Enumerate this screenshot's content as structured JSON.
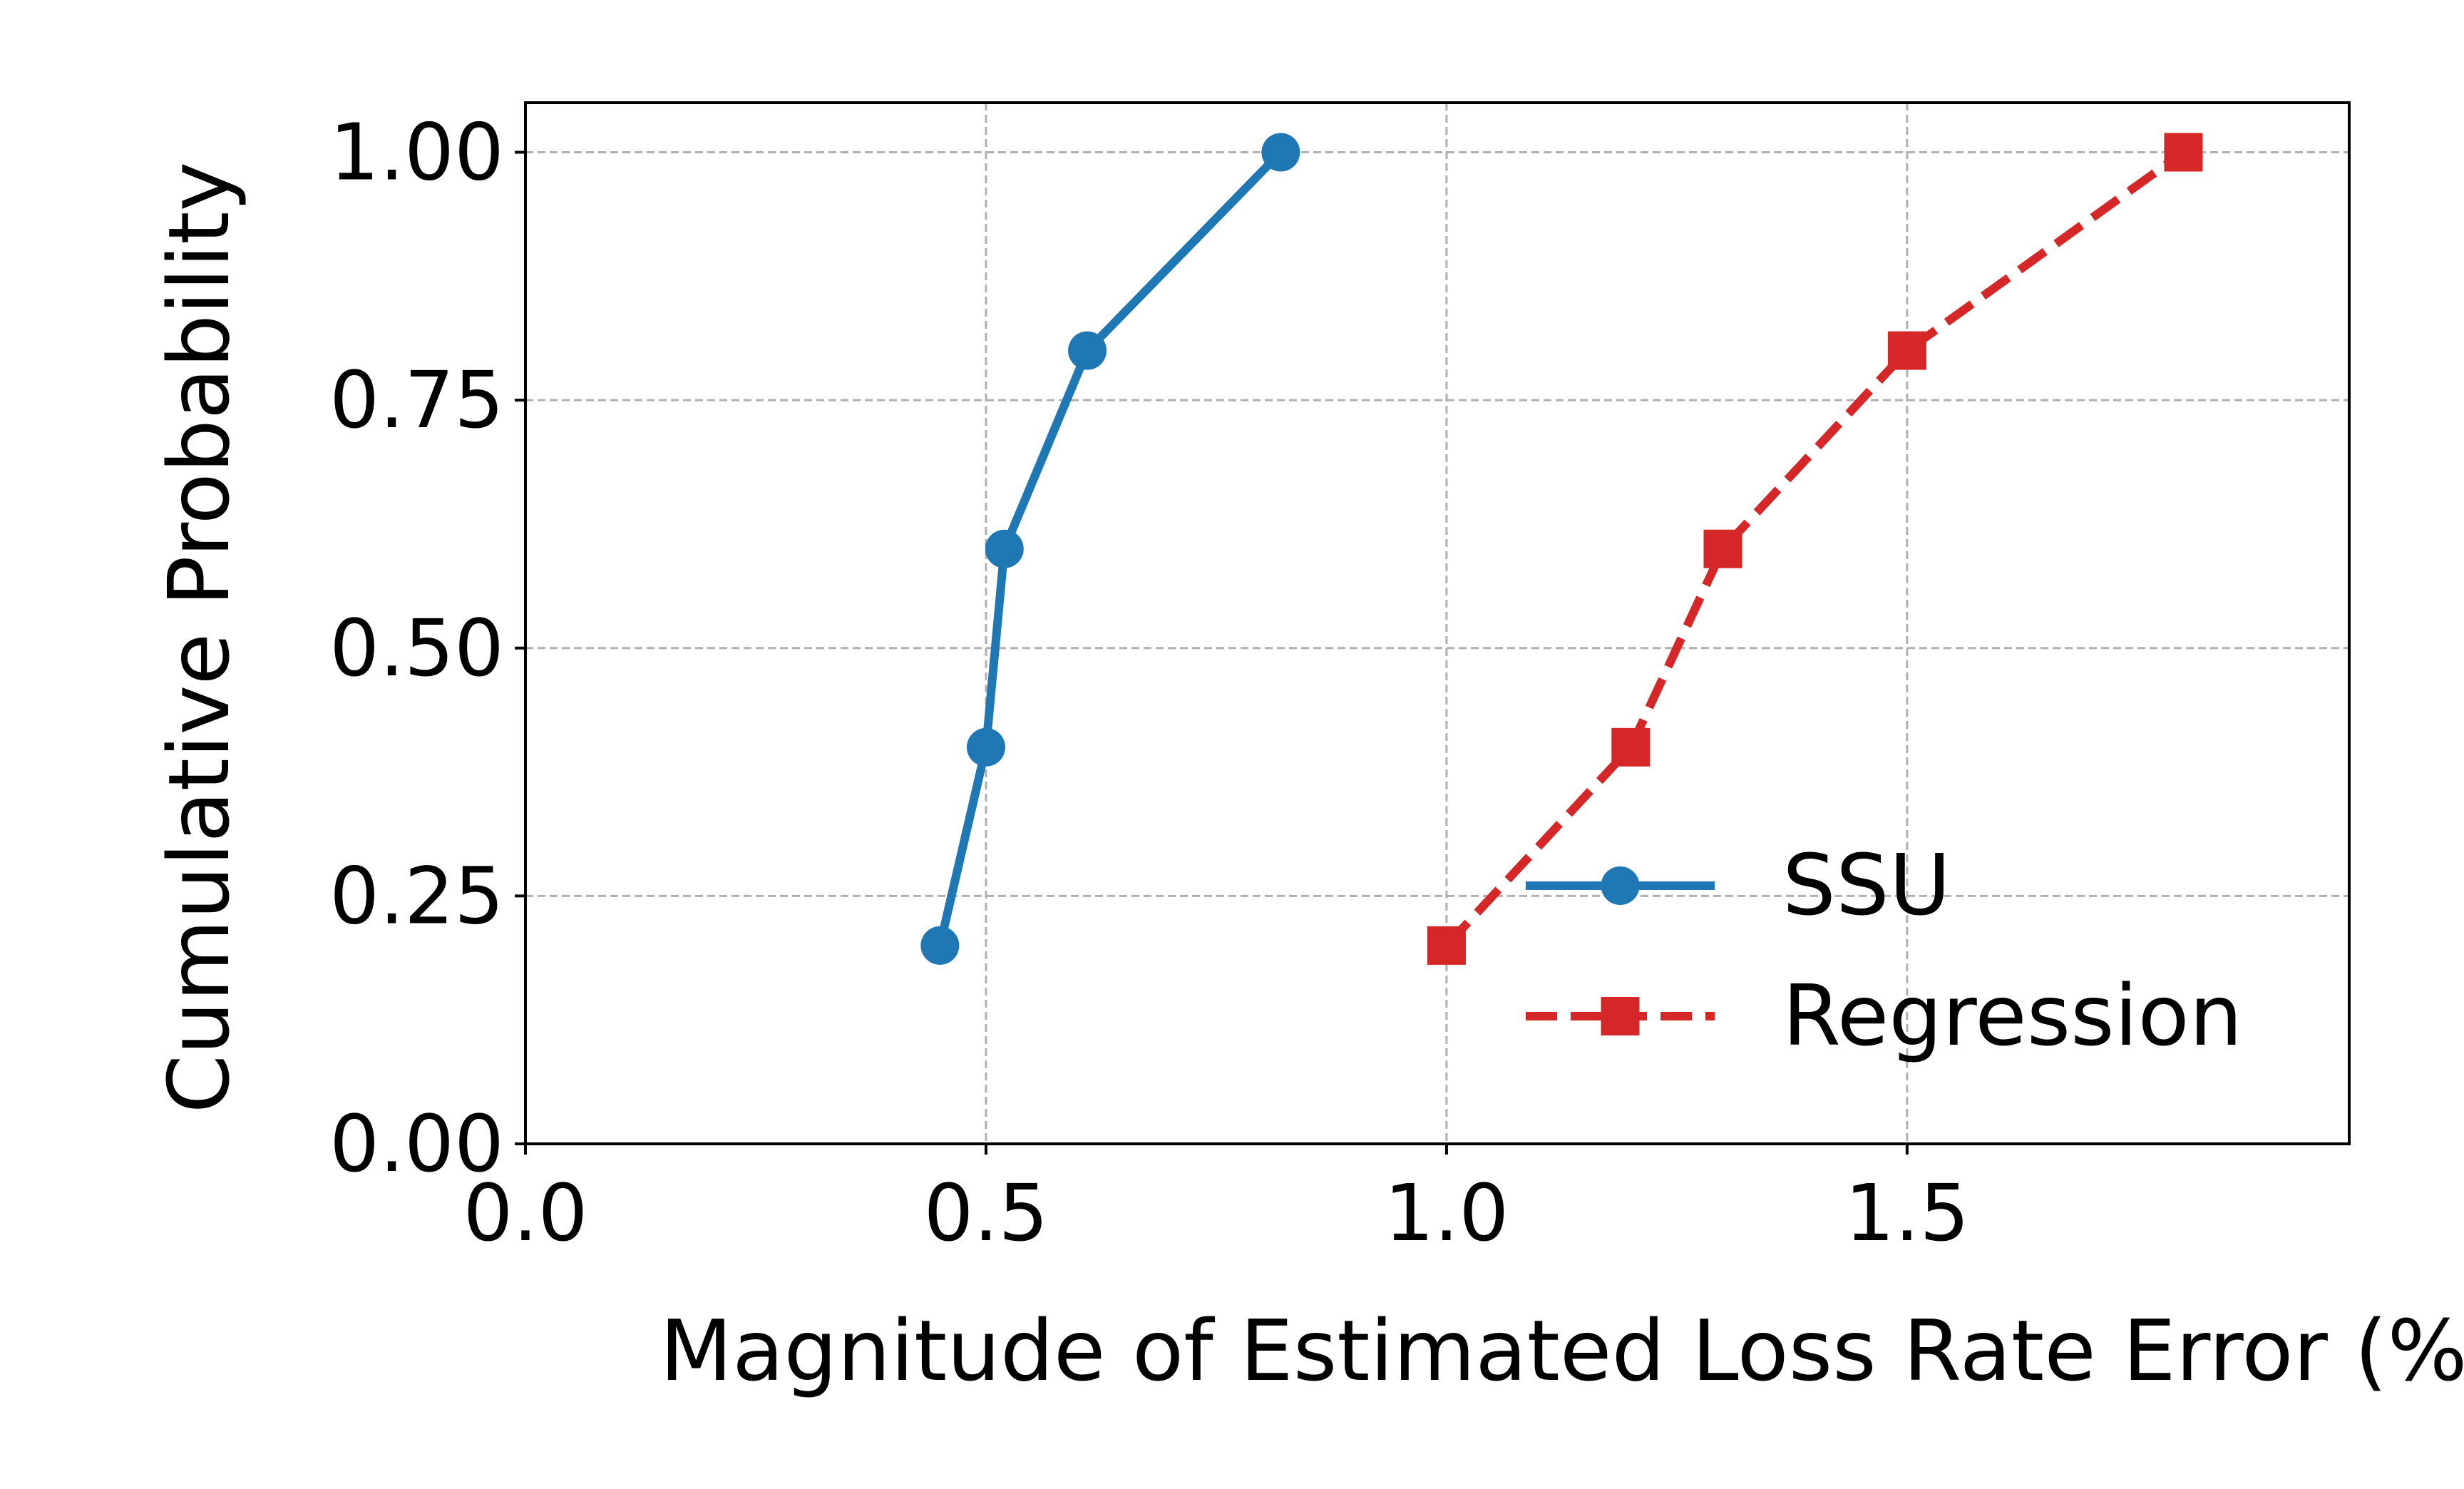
{
  "colors": {
    "ssu": "#1f77b4",
    "regression": "#d62728",
    "grid": "#b0b0b0",
    "axis": "#000000"
  },
  "chart_data": {
    "type": "line",
    "title": "",
    "xlabel": "Magnitude of Estimated Loss Rate Error (%)",
    "ylabel": "Cumulative Probability",
    "xlim": [
      0.0,
      1.98
    ],
    "ylim": [
      0.0,
      1.05
    ],
    "xticks": [
      "0.0",
      "0.5",
      "1.0",
      "1.5"
    ],
    "yticks": [
      "0.00",
      "0.25",
      "0.50",
      "0.75",
      "1.00"
    ],
    "grid": true,
    "legend_position": "lower-right",
    "series": [
      {
        "name": "SSU",
        "marker": "circle",
        "line_style": "solid",
        "color_key": "ssu",
        "x": [
          0.45,
          0.5,
          0.52,
          0.61,
          0.82
        ],
        "y": [
          0.2,
          0.4,
          0.6,
          0.8,
          1.0
        ]
      },
      {
        "name": "Regression",
        "marker": "square",
        "line_style": "dashed",
        "color_key": "regression",
        "x": [
          1.0,
          1.2,
          1.3,
          1.5,
          1.8
        ],
        "y": [
          0.2,
          0.4,
          0.6,
          0.8,
          1.0
        ]
      }
    ]
  }
}
